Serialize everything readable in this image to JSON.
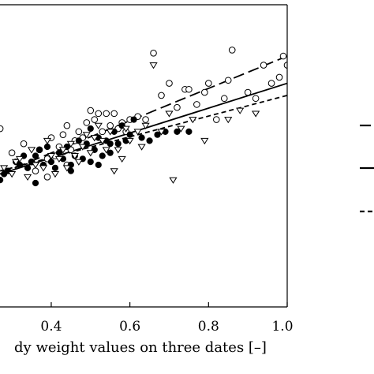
{
  "chart_data": {
    "type": "scatter",
    "xlabel": "dy weight values on three dates [–]",
    "xlim": [
      0.27,
      1.0
    ],
    "ylim": [
      0.0,
      1.0
    ],
    "x_ticks": [
      0.4,
      0.6,
      0.8,
      1.0
    ],
    "x_tick_labels": [
      "0.4",
      "0.6",
      "0.8",
      "1.0"
    ],
    "grid": false,
    "legend_placement": "right (cropped)",
    "series": [
      {
        "marker": "open-circle",
        "points": [
          [
            0.27,
            0.59
          ],
          [
            0.3,
            0.51
          ],
          [
            0.33,
            0.54
          ],
          [
            0.35,
            0.48
          ],
          [
            0.37,
            0.52
          ],
          [
            0.39,
            0.49
          ],
          [
            0.4,
            0.56
          ],
          [
            0.41,
            0.5
          ],
          [
            0.42,
            0.53
          ],
          [
            0.43,
            0.57
          ],
          [
            0.44,
            0.6
          ],
          [
            0.45,
            0.52
          ],
          [
            0.46,
            0.55
          ],
          [
            0.47,
            0.58
          ],
          [
            0.48,
            0.56
          ],
          [
            0.49,
            0.61
          ],
          [
            0.5,
            0.65
          ],
          [
            0.51,
            0.62
          ],
          [
            0.52,
            0.64
          ],
          [
            0.53,
            0.58
          ],
          [
            0.54,
            0.64
          ],
          [
            0.55,
            0.6
          ],
          [
            0.56,
            0.64
          ],
          [
            0.57,
            0.59
          ],
          [
            0.58,
            0.61
          ],
          [
            0.59,
            0.58
          ],
          [
            0.6,
            0.62
          ],
          [
            0.62,
            0.63
          ],
          [
            0.64,
            0.62
          ],
          [
            0.66,
            0.84
          ],
          [
            0.68,
            0.7
          ],
          [
            0.7,
            0.74
          ],
          [
            0.72,
            0.66
          ],
          [
            0.74,
            0.72
          ],
          [
            0.75,
            0.72
          ],
          [
            0.77,
            0.67
          ],
          [
            0.79,
            0.71
          ],
          [
            0.8,
            0.74
          ],
          [
            0.82,
            0.62
          ],
          [
            0.84,
            0.69
          ],
          [
            0.85,
            0.75
          ],
          [
            0.86,
            0.85
          ],
          [
            0.9,
            0.71
          ],
          [
            0.92,
            0.69
          ],
          [
            0.94,
            0.8
          ],
          [
            0.96,
            0.74
          ],
          [
            0.98,
            0.76
          ],
          [
            0.99,
            0.83
          ],
          [
            1.0,
            0.8
          ],
          [
            0.44,
            0.47
          ],
          [
            0.36,
            0.45
          ],
          [
            0.39,
            0.43
          ]
        ]
      },
      {
        "marker": "filled-circle",
        "points": [
          [
            0.27,
            0.42
          ],
          [
            0.29,
            0.45
          ],
          [
            0.31,
            0.48
          ],
          [
            0.32,
            0.47
          ],
          [
            0.33,
            0.5
          ],
          [
            0.34,
            0.46
          ],
          [
            0.35,
            0.48
          ],
          [
            0.36,
            0.5
          ],
          [
            0.37,
            0.52
          ],
          [
            0.38,
            0.47
          ],
          [
            0.39,
            0.53
          ],
          [
            0.4,
            0.48
          ],
          [
            0.41,
            0.46
          ],
          [
            0.42,
            0.51
          ],
          [
            0.43,
            0.49
          ],
          [
            0.44,
            0.53
          ],
          [
            0.45,
            0.47
          ],
          [
            0.46,
            0.5
          ],
          [
            0.47,
            0.55
          ],
          [
            0.48,
            0.49
          ],
          [
            0.49,
            0.54
          ],
          [
            0.5,
            0.59
          ],
          [
            0.51,
            0.52
          ],
          [
            0.52,
            0.56
          ],
          [
            0.53,
            0.5
          ],
          [
            0.54,
            0.55
          ],
          [
            0.55,
            0.51
          ],
          [
            0.56,
            0.58
          ],
          [
            0.57,
            0.54
          ],
          [
            0.58,
            0.6
          ],
          [
            0.59,
            0.55
          ],
          [
            0.6,
            0.57
          ],
          [
            0.61,
            0.62
          ],
          [
            0.63,
            0.56
          ],
          [
            0.65,
            0.55
          ],
          [
            0.67,
            0.57
          ],
          [
            0.69,
            0.58
          ],
          [
            0.72,
            0.58
          ],
          [
            0.75,
            0.58
          ],
          [
            0.36,
            0.41
          ],
          [
            0.45,
            0.45
          ],
          [
            0.5,
            0.48
          ],
          [
            0.28,
            0.44
          ],
          [
            0.52,
            0.47
          ],
          [
            0.55,
            0.54
          ]
        ]
      },
      {
        "marker": "open-triangle-down",
        "points": [
          [
            0.28,
            0.46
          ],
          [
            0.3,
            0.44
          ],
          [
            0.31,
            0.48
          ],
          [
            0.32,
            0.49
          ],
          [
            0.34,
            0.43
          ],
          [
            0.35,
            0.52
          ],
          [
            0.36,
            0.47
          ],
          [
            0.38,
            0.46
          ],
          [
            0.39,
            0.55
          ],
          [
            0.4,
            0.5
          ],
          [
            0.41,
            0.44
          ],
          [
            0.42,
            0.49
          ],
          [
            0.43,
            0.52
          ],
          [
            0.44,
            0.46
          ],
          [
            0.45,
            0.54
          ],
          [
            0.46,
            0.5
          ],
          [
            0.47,
            0.48
          ],
          [
            0.48,
            0.53
          ],
          [
            0.49,
            0.57
          ],
          [
            0.5,
            0.51
          ],
          [
            0.51,
            0.56
          ],
          [
            0.52,
            0.6
          ],
          [
            0.53,
            0.55
          ],
          [
            0.54,
            0.52
          ],
          [
            0.55,
            0.58
          ],
          [
            0.56,
            0.45
          ],
          [
            0.57,
            0.52
          ],
          [
            0.58,
            0.49
          ],
          [
            0.59,
            0.59
          ],
          [
            0.6,
            0.55
          ],
          [
            0.62,
            0.58
          ],
          [
            0.63,
            0.53
          ],
          [
            0.64,
            0.6
          ],
          [
            0.66,
            0.8
          ],
          [
            0.68,
            0.58
          ],
          [
            0.7,
            0.64
          ],
          [
            0.71,
            0.42
          ],
          [
            0.73,
            0.59
          ],
          [
            0.76,
            0.62
          ],
          [
            0.79,
            0.55
          ],
          [
            0.85,
            0.62
          ],
          [
            0.88,
            0.65
          ],
          [
            0.92,
            0.64
          ]
        ]
      }
    ],
    "fit_lines": [
      {
        "style": "long-dash",
        "x": [
          0.27,
          1.0
        ],
        "y": [
          0.44,
          0.83
        ]
      },
      {
        "style": "solid",
        "x": [
          0.27,
          1.0
        ],
        "y": [
          0.44,
          0.74
        ]
      },
      {
        "style": "short-dash",
        "x": [
          0.27,
          1.0
        ],
        "y": [
          0.45,
          0.7
        ]
      }
    ],
    "legend_entries": [
      {
        "style": "long-dash"
      },
      {
        "style": "solid"
      },
      {
        "style": "short-dash"
      }
    ]
  }
}
